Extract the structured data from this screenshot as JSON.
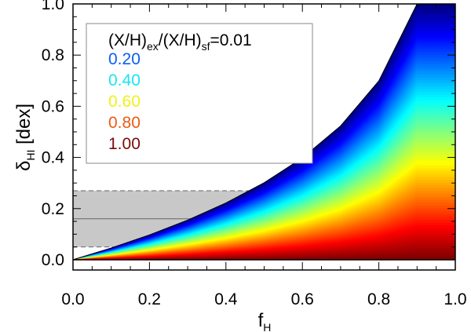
{
  "chart_data": {
    "type": "area",
    "title": "",
    "xlabel": {
      "main": "f",
      "sub": "H"
    },
    "ylabel": {
      "main": "δ",
      "sub": "HI",
      "unit": "[dex]"
    },
    "xlim": [
      0.0,
      1.0
    ],
    "ylim": [
      -0.04,
      1.0
    ],
    "xticks": [
      "0.0",
      "0.2",
      "0.4",
      "0.6",
      "0.8",
      "1.0"
    ],
    "yticks": [
      "0.0",
      "0.2",
      "0.4",
      "0.6",
      "0.8",
      "1.0"
    ],
    "legend": {
      "placement": "top-left",
      "header": {
        "p1": "(X/H)",
        "s1": "ex",
        "p2": "/(X/H)",
        "s2": "sf",
        "p3": "=0.01"
      },
      "entries": [
        {
          "label": "0.20",
          "color": "#0a5ef0"
        },
        {
          "label": "0.40",
          "color": "#16e6f0"
        },
        {
          "label": "0.60",
          "color": "#f0f01a"
        },
        {
          "label": "0.80",
          "color": "#f05a10"
        },
        {
          "label": "1.00",
          "color": "#7a0a0a"
        }
      ]
    },
    "upper_envelope": {
      "x": [
        0.0,
        0.1,
        0.2,
        0.3,
        0.4,
        0.5,
        0.6,
        0.7,
        0.8,
        0.9,
        1.0
      ],
      "y": [
        0.0,
        0.046,
        0.097,
        0.155,
        0.222,
        0.301,
        0.398,
        0.523,
        0.699,
        1.0,
        1.0
      ]
    },
    "shaded_band": {
      "y_low": 0.05,
      "y_mid": 0.16,
      "y_high": 0.27,
      "color": "#c8c8c8"
    },
    "colormap": [
      "#000080",
      "#0000ff",
      "#0080ff",
      "#00ffff",
      "#80ff80",
      "#ffff00",
      "#ff8000",
      "#ff0000",
      "#800000"
    ]
  }
}
